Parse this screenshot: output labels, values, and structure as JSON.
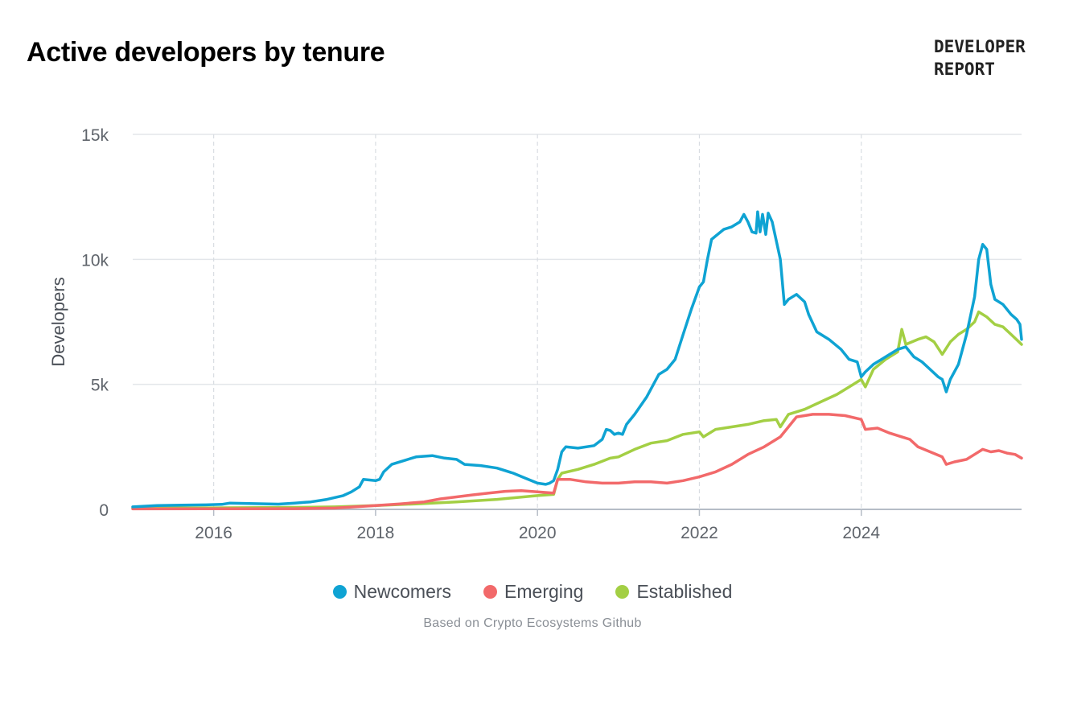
{
  "header": {
    "title": "Active developers by tenure",
    "brand_line1": "DEVELOPER",
    "brand_line2": "REPORT"
  },
  "source_note": "Based on Crypto Ecosystems Github",
  "chart_data": {
    "type": "line",
    "title": "Active developers by tenure",
    "xlabel": "",
    "ylabel": "Developers",
    "xlim": [
      2015.0,
      2025.98
    ],
    "ylim": [
      0,
      15000
    ],
    "x_ticks": [
      2016,
      2018,
      2020,
      2022,
      2024
    ],
    "x_tick_labels": [
      "2016",
      "2018",
      "2020",
      "2022",
      "2024"
    ],
    "y_ticks": [
      0,
      5000,
      10000,
      15000
    ],
    "y_tick_labels": [
      "0",
      "5k",
      "10k",
      "15k"
    ],
    "grid": true,
    "legend_position": "bottom-center",
    "series": [
      {
        "name": "Newcomers",
        "color": "#0fa3d3",
        "points": [
          [
            2015.0,
            100
          ],
          [
            2015.3,
            150
          ],
          [
            2015.6,
            170
          ],
          [
            2015.9,
            180
          ],
          [
            2016.1,
            200
          ],
          [
            2016.2,
            250
          ],
          [
            2016.5,
            230
          ],
          [
            2016.8,
            210
          ],
          [
            2017.0,
            250
          ],
          [
            2017.2,
            300
          ],
          [
            2017.4,
            400
          ],
          [
            2017.6,
            550
          ],
          [
            2017.7,
            700
          ],
          [
            2017.8,
            900
          ],
          [
            2017.85,
            1200
          ],
          [
            2018.0,
            1150
          ],
          [
            2018.05,
            1200
          ],
          [
            2018.1,
            1500
          ],
          [
            2018.2,
            1800
          ],
          [
            2018.35,
            1950
          ],
          [
            2018.5,
            2100
          ],
          [
            2018.7,
            2150
          ],
          [
            2018.85,
            2050
          ],
          [
            2019.0,
            2000
          ],
          [
            2019.1,
            1800
          ],
          [
            2019.3,
            1750
          ],
          [
            2019.5,
            1650
          ],
          [
            2019.7,
            1450
          ],
          [
            2019.85,
            1250
          ],
          [
            2020.0,
            1050
          ],
          [
            2020.1,
            1000
          ],
          [
            2020.15,
            1050
          ],
          [
            2020.2,
            1150
          ],
          [
            2020.25,
            1600
          ],
          [
            2020.3,
            2300
          ],
          [
            2020.35,
            2500
          ],
          [
            2020.5,
            2450
          ],
          [
            2020.7,
            2550
          ],
          [
            2020.8,
            2800
          ],
          [
            2020.85,
            3200
          ],
          [
            2020.9,
            3150
          ],
          [
            2020.95,
            3000
          ],
          [
            2021.0,
            3050
          ],
          [
            2021.05,
            3000
          ],
          [
            2021.1,
            3400
          ],
          [
            2021.2,
            3800
          ],
          [
            2021.35,
            4500
          ],
          [
            2021.5,
            5400
          ],
          [
            2021.6,
            5600
          ],
          [
            2021.7,
            6000
          ],
          [
            2021.8,
            7000
          ],
          [
            2021.9,
            8000
          ],
          [
            2022.0,
            8900
          ],
          [
            2022.05,
            9100
          ],
          [
            2022.1,
            10000
          ],
          [
            2022.15,
            10800
          ],
          [
            2022.3,
            11200
          ],
          [
            2022.4,
            11300
          ],
          [
            2022.5,
            11500
          ],
          [
            2022.55,
            11800
          ],
          [
            2022.6,
            11500
          ],
          [
            2022.65,
            11100
          ],
          [
            2022.7,
            11050
          ],
          [
            2022.72,
            11900
          ],
          [
            2022.75,
            11100
          ],
          [
            2022.78,
            11800
          ],
          [
            2022.82,
            11000
          ],
          [
            2022.85,
            11850
          ],
          [
            2022.9,
            11500
          ],
          [
            2023.0,
            10000
          ],
          [
            2023.05,
            8200
          ],
          [
            2023.1,
            8400
          ],
          [
            2023.2,
            8600
          ],
          [
            2023.3,
            8300
          ],
          [
            2023.35,
            7800
          ],
          [
            2023.45,
            7100
          ],
          [
            2023.6,
            6800
          ],
          [
            2023.75,
            6400
          ],
          [
            2023.85,
            6000
          ],
          [
            2023.95,
            5900
          ],
          [
            2024.0,
            5300
          ],
          [
            2024.05,
            5500
          ],
          [
            2024.15,
            5800
          ],
          [
            2024.25,
            6000
          ],
          [
            2024.35,
            6200
          ],
          [
            2024.45,
            6400
          ],
          [
            2024.55,
            6500
          ],
          [
            2024.65,
            6100
          ],
          [
            2024.75,
            5900
          ],
          [
            2024.85,
            5600
          ],
          [
            2024.95,
            5300
          ],
          [
            2025.0,
            5200
          ],
          [
            2025.05,
            4700
          ],
          [
            2025.1,
            5200
          ],
          [
            2025.2,
            5800
          ],
          [
            2025.3,
            7000
          ],
          [
            2025.4,
            8500
          ],
          [
            2025.45,
            10000
          ],
          [
            2025.5,
            10600
          ],
          [
            2025.55,
            10400
          ],
          [
            2025.6,
            9000
          ],
          [
            2025.65,
            8400
          ],
          [
            2025.75,
            8200
          ],
          [
            2025.85,
            7800
          ],
          [
            2025.92,
            7600
          ],
          [
            2025.96,
            7400
          ],
          [
            2025.98,
            6800
          ]
        ]
      },
      {
        "name": "Emerging",
        "color": "#f2696a",
        "points": [
          [
            2015.0,
            20
          ],
          [
            2016.0,
            25
          ],
          [
            2017.0,
            30
          ],
          [
            2017.5,
            50
          ],
          [
            2018.0,
            150
          ],
          [
            2018.3,
            220
          ],
          [
            2018.6,
            300
          ],
          [
            2018.8,
            420
          ],
          [
            2019.0,
            500
          ],
          [
            2019.2,
            580
          ],
          [
            2019.4,
            650
          ],
          [
            2019.6,
            720
          ],
          [
            2019.8,
            750
          ],
          [
            2020.0,
            700
          ],
          [
            2020.2,
            650
          ],
          [
            2020.25,
            1200
          ],
          [
            2020.4,
            1200
          ],
          [
            2020.6,
            1100
          ],
          [
            2020.8,
            1050
          ],
          [
            2021.0,
            1050
          ],
          [
            2021.2,
            1100
          ],
          [
            2021.4,
            1100
          ],
          [
            2021.6,
            1050
          ],
          [
            2021.8,
            1150
          ],
          [
            2022.0,
            1300
          ],
          [
            2022.2,
            1500
          ],
          [
            2022.4,
            1800
          ],
          [
            2022.6,
            2200
          ],
          [
            2022.8,
            2500
          ],
          [
            2023.0,
            2900
          ],
          [
            2023.1,
            3300
          ],
          [
            2023.2,
            3700
          ],
          [
            2023.4,
            3800
          ],
          [
            2023.6,
            3800
          ],
          [
            2023.8,
            3750
          ],
          [
            2024.0,
            3600
          ],
          [
            2024.05,
            3200
          ],
          [
            2024.2,
            3250
          ],
          [
            2024.35,
            3050
          ],
          [
            2024.5,
            2900
          ],
          [
            2024.6,
            2800
          ],
          [
            2024.7,
            2500
          ],
          [
            2024.85,
            2300
          ],
          [
            2025.0,
            2100
          ],
          [
            2025.05,
            1800
          ],
          [
            2025.15,
            1900
          ],
          [
            2025.3,
            2000
          ],
          [
            2025.4,
            2200
          ],
          [
            2025.5,
            2400
          ],
          [
            2025.6,
            2300
          ],
          [
            2025.7,
            2350
          ],
          [
            2025.8,
            2250
          ],
          [
            2025.9,
            2200
          ],
          [
            2025.98,
            2050
          ]
        ]
      },
      {
        "name": "Established",
        "color": "#a3cf44",
        "points": [
          [
            2015.0,
            50
          ],
          [
            2016.0,
            60
          ],
          [
            2017.0,
            80
          ],
          [
            2017.5,
            100
          ],
          [
            2018.0,
            150
          ],
          [
            2018.5,
            220
          ],
          [
            2019.0,
            300
          ],
          [
            2019.5,
            400
          ],
          [
            2020.0,
            550
          ],
          [
            2020.2,
            600
          ],
          [
            2020.25,
            1200
          ],
          [
            2020.3,
            1450
          ],
          [
            2020.5,
            1600
          ],
          [
            2020.7,
            1800
          ],
          [
            2020.9,
            2050
          ],
          [
            2021.0,
            2100
          ],
          [
            2021.2,
            2400
          ],
          [
            2021.4,
            2650
          ],
          [
            2021.6,
            2750
          ],
          [
            2021.8,
            3000
          ],
          [
            2022.0,
            3100
          ],
          [
            2022.05,
            2900
          ],
          [
            2022.2,
            3200
          ],
          [
            2022.4,
            3300
          ],
          [
            2022.6,
            3400
          ],
          [
            2022.8,
            3550
          ],
          [
            2022.95,
            3600
          ],
          [
            2023.0,
            3300
          ],
          [
            2023.1,
            3800
          ],
          [
            2023.3,
            4000
          ],
          [
            2023.5,
            4300
          ],
          [
            2023.7,
            4600
          ],
          [
            2023.9,
            5000
          ],
          [
            2024.0,
            5200
          ],
          [
            2024.05,
            4900
          ],
          [
            2024.15,
            5600
          ],
          [
            2024.3,
            6000
          ],
          [
            2024.45,
            6300
          ],
          [
            2024.5,
            7200
          ],
          [
            2024.55,
            6600
          ],
          [
            2024.7,
            6800
          ],
          [
            2024.8,
            6900
          ],
          [
            2024.9,
            6700
          ],
          [
            2025.0,
            6200
          ],
          [
            2025.1,
            6700
          ],
          [
            2025.2,
            7000
          ],
          [
            2025.3,
            7200
          ],
          [
            2025.4,
            7500
          ],
          [
            2025.45,
            7900
          ],
          [
            2025.55,
            7700
          ],
          [
            2025.65,
            7400
          ],
          [
            2025.75,
            7300
          ],
          [
            2025.85,
            7000
          ],
          [
            2025.98,
            6600
          ]
        ]
      }
    ]
  }
}
